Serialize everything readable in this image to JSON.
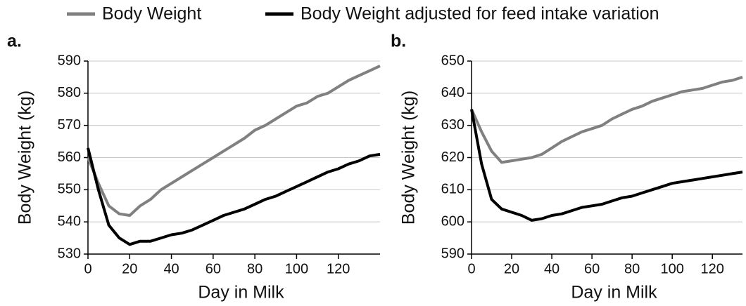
{
  "chart_data": [
    {
      "type": "line",
      "label": "a.",
      "x_label": "Day in Milk",
      "y_label": "Body Weight (kg)",
      "x": [
        0,
        5,
        10,
        15,
        20,
        25,
        30,
        35,
        40,
        45,
        50,
        55,
        60,
        65,
        70,
        75,
        80,
        85,
        90,
        95,
        100,
        105,
        110,
        115,
        120,
        125,
        130,
        135,
        140
      ],
      "series": [
        {
          "name": "Body Weight",
          "color": "#808080",
          "values": [
            560,
            552,
            545,
            542.5,
            542,
            545,
            547,
            550,
            552,
            554,
            556,
            558,
            560,
            562,
            564,
            566,
            568.5,
            570,
            572,
            574,
            576,
            577,
            579,
            580,
            582,
            584,
            585.5,
            587,
            588.5
          ]
        },
        {
          "name": "Body Weight adjusted for feed intake variation",
          "color": "#000000",
          "values": [
            563,
            550,
            539,
            535,
            533,
            534,
            534,
            535,
            536,
            536.5,
            537.5,
            539,
            540.5,
            542,
            543,
            544,
            545.5,
            547,
            548,
            549.5,
            551,
            552.5,
            554,
            555.5,
            556.5,
            558,
            559,
            560.5,
            561
          ]
        }
      ],
      "xlim": [
        0,
        140
      ],
      "xticks": [
        0,
        20,
        40,
        60,
        80,
        100,
        120
      ],
      "ylim": [
        530,
        590
      ],
      "yticks": [
        530,
        540,
        550,
        560,
        570,
        580,
        590
      ],
      "grid": true
    },
    {
      "type": "line",
      "label": "b.",
      "x_label": "Day in Milk",
      "y_label": "Body Weight (kg)",
      "x": [
        0,
        5,
        10,
        15,
        20,
        25,
        30,
        35,
        40,
        45,
        50,
        55,
        60,
        65,
        70,
        75,
        80,
        85,
        90,
        95,
        100,
        105,
        110,
        115,
        120,
        125,
        130,
        135
      ],
      "series": [
        {
          "color": "#808080",
          "values": [
            635,
            628,
            622,
            618.5,
            619,
            619.5,
            620,
            621,
            623,
            625,
            626.5,
            628,
            629,
            630,
            632,
            633.5,
            635,
            636,
            637.5,
            638.5,
            639.5,
            640.5,
            641,
            641.5,
            642.5,
            643.5,
            644,
            645
          ]
        },
        {
          "color": "#000000",
          "values": [
            635,
            618,
            607,
            604,
            603,
            602,
            600.5,
            601,
            602,
            602.5,
            603.5,
            604.5,
            605,
            605.5,
            606.5,
            607.5,
            608,
            609,
            610,
            611,
            612,
            612.5,
            613,
            613.5,
            614,
            614.5,
            615,
            615.5
          ]
        }
      ],
      "xlim": [
        0,
        135
      ],
      "xticks": [
        0,
        20,
        40,
        60,
        80,
        100,
        120
      ],
      "ylim": [
        590,
        650
      ],
      "yticks": [
        590,
        600,
        610,
        620,
        630,
        640,
        650
      ],
      "grid": true
    }
  ]
}
